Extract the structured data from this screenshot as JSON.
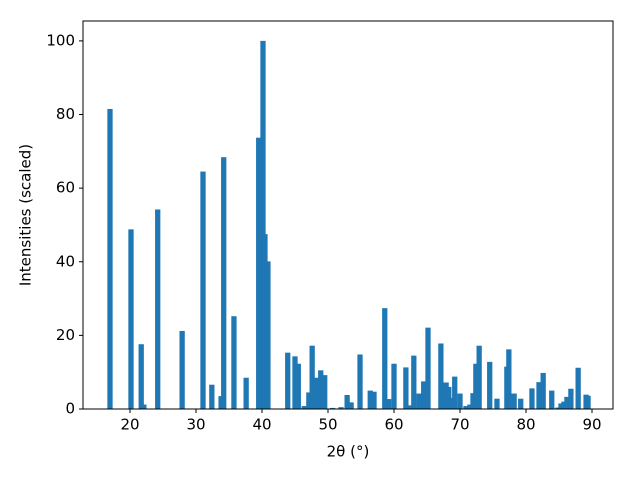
{
  "chart_data": {
    "type": "bar",
    "xlabel": "2θ (°)",
    "ylabel": "Intensities (scaled)",
    "color": "#1f77b4",
    "x": [
      16.97,
      20.15,
      21.7,
      22.1,
      24.2,
      27.9,
      31.06,
      32.4,
      33.8,
      34.2,
      35.75,
      37.6,
      39.5,
      40.15,
      40.45,
      40.9,
      43.9,
      45.0,
      45.5,
      46.4,
      47.1,
      47.6,
      48.2,
      48.9,
      49.5,
      50.7,
      51.97,
      52.9,
      53.5,
      54.85,
      56.4,
      56.97,
      58.6,
      59.2,
      60.0,
      61.8,
      62.4,
      63.0,
      63.8,
      64.5,
      65.15,
      67.1,
      67.9,
      68.3,
      68.6,
      69.2,
      70.0,
      70.9,
      71.5,
      71.97,
      72.4,
      72.9,
      74.5,
      75.6,
      77.1,
      77.4,
      78.2,
      79.2,
      80.9,
      81.97,
      82.6,
      83.9,
      84.85,
      85.3,
      85.75,
      86.2,
      86.8,
      87.9,
      89.1,
      89.4
    ],
    "values": [
      81.5,
      48.8,
      17.6,
      1.2,
      54.2,
      21.2,
      64.5,
      6.6,
      3.5,
      68.4,
      25.2,
      8.5,
      73.7,
      100,
      47.5,
      40.1,
      15.3,
      14.3,
      12.3,
      0.8,
      4.5,
      17.2,
      8.5,
      10.5,
      9.2,
      0.3,
      0.5,
      3.8,
      1.8,
      14.8,
      5.0,
      4.7,
      27.4,
      2.7,
      12.3,
      11.3,
      1.0,
      14.5,
      4.2,
      7.5,
      22.1,
      17.8,
      7.2,
      6.0,
      3.0,
      8.8,
      4.2,
      0.8,
      1.2,
      4.3,
      12.3,
      17.2,
      12.8,
      2.8,
      11.5,
      16.2,
      4.2,
      2.8,
      5.6,
      7.3,
      9.8,
      5.0,
      0.4,
      1.5,
      2.0,
      3.3,
      5.5,
      11.2,
      3.9,
      3.6
    ],
    "xlim": [
      12.88,
      93.18
    ],
    "ylim": [
      0,
      105.4
    ],
    "xticks": [
      20,
      30,
      40,
      50,
      60,
      70,
      80,
      90
    ],
    "yticks": [
      0,
      20,
      40,
      60,
      80,
      100
    ]
  }
}
